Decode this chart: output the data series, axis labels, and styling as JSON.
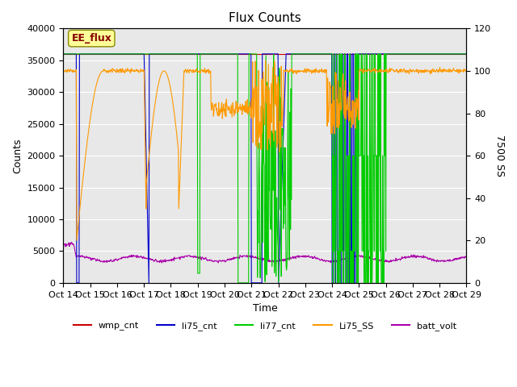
{
  "title": "Flux Counts",
  "xlabel": "Time",
  "ylabel_left": "Counts",
  "ylabel_right": "7500 SS",
  "ylim_left": [
    0,
    40000
  ],
  "ylim_right": [
    0,
    120
  ],
  "yticks_left": [
    0,
    5000,
    10000,
    15000,
    20000,
    25000,
    30000,
    35000,
    40000
  ],
  "yticks_right": [
    0,
    20,
    40,
    60,
    80,
    100,
    120
  ],
  "xtick_labels": [
    "Oct 14",
    "Oct 15",
    "Oct 16",
    "Oct 17",
    "Oct 18",
    "Oct 19",
    "Oct 20",
    "Oct 21",
    "Oct 22",
    "Oct 23",
    "Oct 24",
    "Oct 25",
    "Oct 26",
    "Oct 27",
    "Oct 28",
    "Oct 29"
  ],
  "bg_color": "#e8e8e8",
  "legend_items": [
    "wmp_cnt",
    "li75_cnt",
    "li77_cnt",
    "Li75_SS",
    "batt_volt"
  ],
  "legend_colors": [
    "#cc0000",
    "#0000cc",
    "#00cc00",
    "#ff9900",
    "#aa00aa"
  ],
  "ee_flux_label": "EE_flux",
  "ee_flux_box_color": "#ffff99",
  "ee_flux_text_color": "#880000"
}
